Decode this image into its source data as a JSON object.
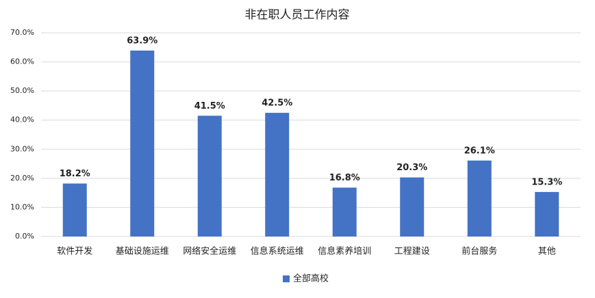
{
  "chart_data": {
    "type": "bar",
    "title": "非在职人员工作内容",
    "categories": [
      "软件开发",
      "基础设施运维",
      "网络安全运维",
      "信息系统运维",
      "信息素养培训",
      "工程建设",
      "前台服务",
      "其他"
    ],
    "series": [
      {
        "name": "全部高校",
        "color": "#4472c4",
        "values": [
          18.2,
          63.9,
          41.5,
          42.5,
          16.8,
          20.3,
          26.1,
          15.3
        ],
        "value_labels": [
          "18.2%",
          "63.9%",
          "41.5%",
          "42.5%",
          "16.8%",
          "20.3%",
          "26.1%",
          "15.3%"
        ]
      }
    ],
    "ylim": [
      0,
      70
    ],
    "yticks": [
      {
        "value": 0,
        "label": "0.0%"
      },
      {
        "value": 10,
        "label": "10.0%"
      },
      {
        "value": 20,
        "label": "20.0%"
      },
      {
        "value": 30,
        "label": "30.0%"
      },
      {
        "value": 40,
        "label": "40.0%"
      },
      {
        "value": 50,
        "label": "50.0%"
      },
      {
        "value": 60,
        "label": "60.0%"
      },
      {
        "value": 70,
        "label": "70.0%"
      }
    ],
    "grid": true,
    "legend": "bottom"
  }
}
